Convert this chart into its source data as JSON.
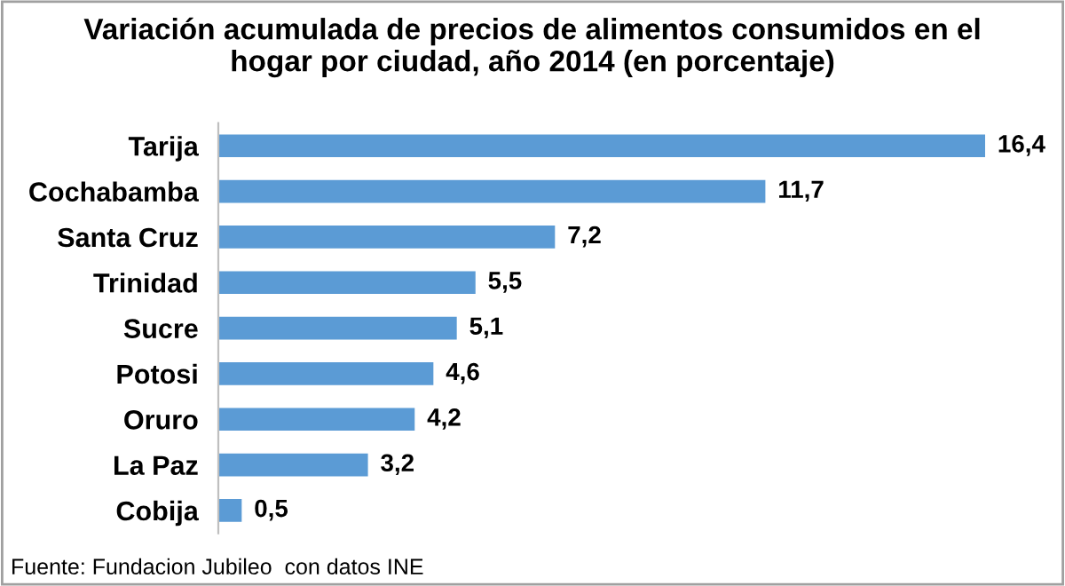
{
  "chart_data": {
    "type": "bar",
    "orientation": "horizontal",
    "title": "Variación acumulada de precios de alimentos consumidos en el\nhogar por ciudad, año 2014 (en porcentaje)",
    "categories": [
      "Tarija",
      "Cochabamba",
      "Santa Cruz",
      "Trinidad",
      "Sucre",
      "Potosi",
      "Oruro",
      "La Paz",
      "Cobija"
    ],
    "values": [
      16.4,
      11.7,
      7.2,
      5.5,
      5.1,
      4.6,
      4.2,
      3.2,
      0.5
    ],
    "value_labels": [
      "16,4",
      "11,7",
      "7,2",
      "5,5",
      "5,1",
      "4,6",
      "4,2",
      "3,2",
      "0,5"
    ],
    "color": "#5b9bd5",
    "grid": false,
    "legend": false,
    "tick_labels": "y",
    "annotations": [
      "Fuente: Fundacion Jubileo  con datos INE"
    ]
  }
}
